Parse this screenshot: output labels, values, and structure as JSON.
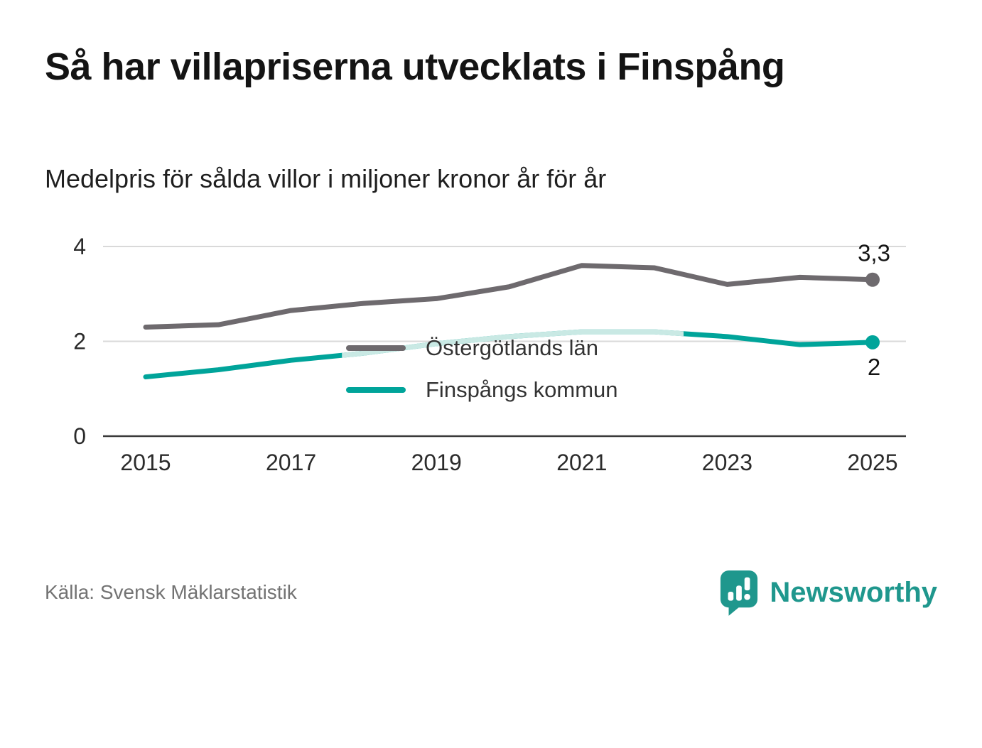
{
  "title": "Så har villapriserna utvecklats i Finspång",
  "subtitle": "Medelpris för sålda villor i miljoner kronor år för år",
  "source": "Källa: Svensk Mäklarstatistik",
  "brand": {
    "name": "Newsworthy",
    "color": "#1f978d"
  },
  "chart_data": {
    "type": "line",
    "x": [
      2015,
      2016,
      2017,
      2018,
      2019,
      2020,
      2021,
      2022,
      2023,
      2024,
      2025
    ],
    "series": [
      {
        "name": "Östergötlands län",
        "color": "#6e6a6e",
        "values": [
          2.3,
          2.35,
          2.65,
          2.8,
          2.9,
          3.15,
          3.6,
          3.55,
          3.2,
          3.35,
          3.3
        ],
        "end_label": "3,3",
        "end_label_position": "above"
      },
      {
        "name": "Finspångs kommun",
        "color": "#00a49a",
        "values": [
          1.25,
          1.4,
          1.6,
          1.75,
          1.95,
          2.1,
          2.2,
          2.2,
          2.1,
          1.93,
          1.98
        ],
        "end_label": "2",
        "end_label_position": "below",
        "light_segment": {
          "from": 2017.7,
          "to": 2022.4,
          "color": "#c9e9e4"
        }
      }
    ],
    "ylim": [
      0,
      4
    ],
    "yticks": [
      0,
      2,
      4
    ],
    "xticks": [
      2015,
      2017,
      2019,
      2021,
      2023,
      2025
    ],
    "grid": "horizontal",
    "legend_position": "inside-center"
  }
}
